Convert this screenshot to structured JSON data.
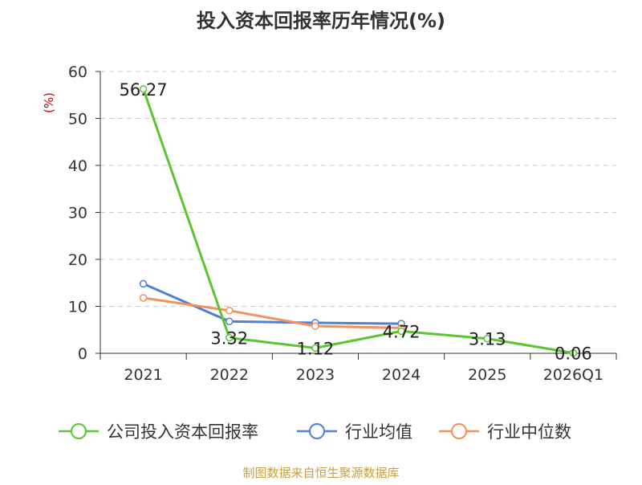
{
  "title": "投入资本回报率历年情况(%)",
  "source_text": "制图数据来自恒生聚源数据库",
  "chart_data": {
    "type": "line",
    "title": "投入资本回报率历年情况(%)",
    "ylabel": "(%)",
    "xlabel": "",
    "categories": [
      "2021",
      "2022",
      "2023",
      "2024",
      "2025",
      "2026Q1"
    ],
    "ylim": [
      0,
      60
    ],
    "yticks": [
      "0",
      "10",
      "20",
      "30",
      "40",
      "50",
      "60"
    ],
    "grid": true,
    "legend_position": "bottom",
    "series": [
      {
        "name": "公司投入资本回报率",
        "color": "#5cc42e",
        "values": [
          56.27,
          3.32,
          1.12,
          4.72,
          3.13,
          0.06
        ],
        "labels": [
          "56.27",
          "3.32",
          "1.12",
          "4.72",
          "3.13",
          "0.06"
        ]
      },
      {
        "name": "行业均值",
        "color": "#4f7fd6",
        "values": [
          14.8,
          6.8,
          6.5,
          6.3,
          null,
          null
        ]
      },
      {
        "name": "行业中位数",
        "color": "#f2925a",
        "values": [
          11.8,
          9.1,
          5.8,
          5.4,
          null,
          null
        ]
      }
    ]
  }
}
